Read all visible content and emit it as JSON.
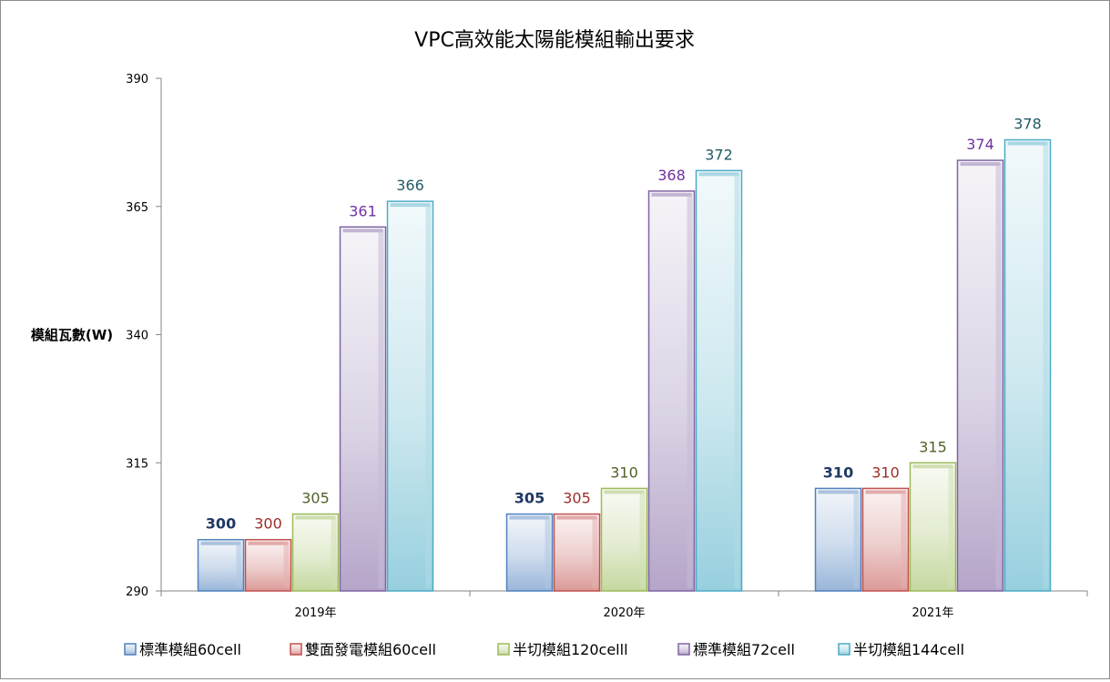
{
  "chart_data": {
    "type": "bar",
    "title": "VPC高效能太陽能模組輸出要求",
    "ylabel": "模組瓦數(W)",
    "xlabel": "",
    "ylim": [
      290,
      390
    ],
    "yticks": [
      290,
      315,
      340,
      365,
      390
    ],
    "categories": [
      "2019年",
      "2020年",
      "2021年"
    ],
    "grid": false,
    "legend_position": "bottom",
    "series": [
      {
        "name": "標準模組60cell",
        "values": [
          300,
          305,
          310
        ],
        "color": "#4f81bd",
        "label_color": "#1f3864",
        "label_bold": true
      },
      {
        "name": "雙面發電模組60cell",
        "values": [
          300,
          305,
          310
        ],
        "color": "#c0504d",
        "label_color": "#9b2d2a",
        "label_bold": false
      },
      {
        "name": "半切模組120celll",
        "values": [
          305,
          310,
          315
        ],
        "color": "#9bbb59",
        "label_color": "#4f6228",
        "label_bold": false
      },
      {
        "name": "標準模組72cell",
        "values": [
          361,
          368,
          374
        ],
        "color": "#8064a2",
        "label_color": "#7030a0",
        "label_bold": false
      },
      {
        "name": "半切模組144cell",
        "values": [
          366,
          372,
          378
        ],
        "color": "#4bacc6",
        "label_color": "#215967",
        "label_bold": false
      }
    ]
  }
}
